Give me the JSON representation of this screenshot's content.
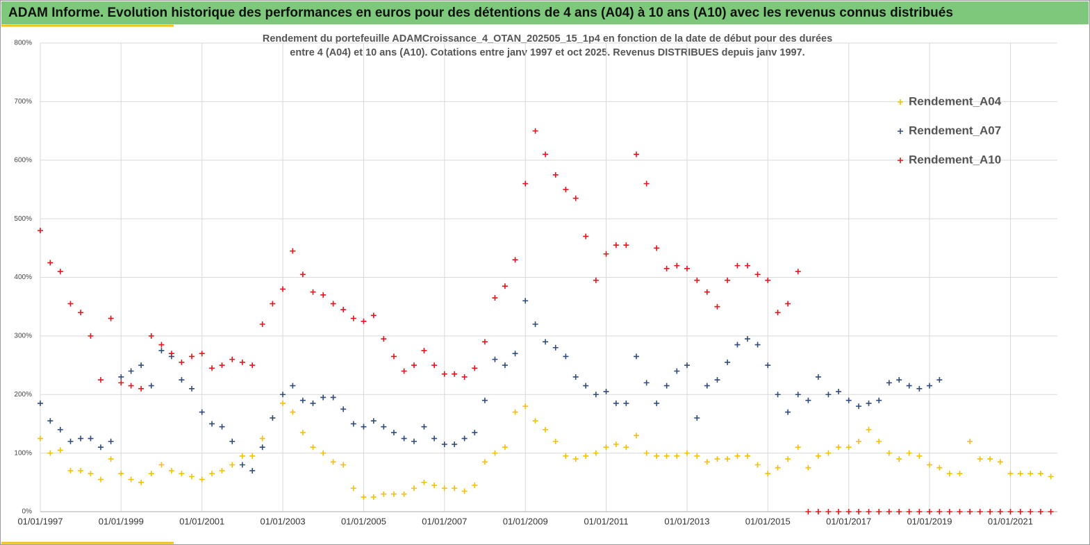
{
  "header": {
    "title": "ADAM Informe. Evolution historique des performances en euros pour des détentions de 4 ans (A04) à 10 ans (A10) avec les revenus connus distribués"
  },
  "chart_data": {
    "type": "scatter",
    "title": [
      "Rendement du portefeuille ADAMCroissance_4_OTAN_202505_15_1p4  en fonction de la date de début pour des durées",
      "entre 4 (A04) et 10 ans (A10). Cotations entre janv 1997 et oct 2025. Revenus DISTRIBUES depuis janv 1997."
    ],
    "x": [
      "1997-01-01",
      "1997-04-01",
      "1997-07-01",
      "1997-10-01",
      "1998-01-01",
      "1998-04-01",
      "1998-07-01",
      "1998-10-01",
      "1999-01-01",
      "1999-04-01",
      "1999-07-01",
      "1999-10-01",
      "2000-01-01",
      "2000-04-01",
      "2000-07-01",
      "2000-10-01",
      "2001-01-01",
      "2001-04-01",
      "2001-07-01",
      "2001-10-01",
      "2002-01-01",
      "2002-04-01",
      "2002-07-01",
      "2002-10-01",
      "2003-01-01",
      "2003-04-01",
      "2003-07-01",
      "2003-10-01",
      "2004-01-01",
      "2004-04-01",
      "2004-07-01",
      "2004-10-01",
      "2005-01-01",
      "2005-04-01",
      "2005-07-01",
      "2005-10-01",
      "2006-01-01",
      "2006-04-01",
      "2006-07-01",
      "2006-10-01",
      "2007-01-01",
      "2007-04-01",
      "2007-07-01",
      "2007-10-01",
      "2008-01-01",
      "2008-04-01",
      "2008-07-01",
      "2008-10-01",
      "2009-01-01",
      "2009-04-01",
      "2009-07-01",
      "2009-10-01",
      "2010-01-01",
      "2010-04-01",
      "2010-07-01",
      "2010-10-01",
      "2011-01-01",
      "2011-04-01",
      "2011-07-01",
      "2011-10-01",
      "2012-01-01",
      "2012-04-01",
      "2012-07-01",
      "2012-10-01",
      "2013-01-01",
      "2013-04-01",
      "2013-07-01",
      "2013-10-01",
      "2014-01-01",
      "2014-04-01",
      "2014-07-01",
      "2014-10-01",
      "2015-01-01",
      "2015-04-01",
      "2015-07-01",
      "2015-10-01",
      "2016-01-01",
      "2016-04-01",
      "2016-07-01",
      "2016-10-01",
      "2017-01-01",
      "2017-04-01",
      "2017-07-01",
      "2017-10-01",
      "2018-01-01",
      "2018-04-01",
      "2018-07-01",
      "2018-10-01",
      "2019-01-01",
      "2019-04-01",
      "2019-07-01",
      "2019-10-01",
      "2020-01-01",
      "2020-04-01",
      "2020-07-01",
      "2020-10-01",
      "2021-01-01",
      "2021-04-01",
      "2021-07-01",
      "2021-10-01",
      "2022-01-01"
    ],
    "series": [
      {
        "name": "Rendement_A04",
        "color": "#f5c000",
        "values": [
          125,
          100,
          105,
          70,
          70,
          65,
          55,
          90,
          65,
          55,
          50,
          65,
          80,
          70,
          65,
          60,
          55,
          65,
          70,
          80,
          95,
          95,
          125,
          160,
          185,
          170,
          135,
          110,
          100,
          85,
          80,
          40,
          25,
          25,
          30,
          30,
          30,
          40,
          50,
          45,
          40,
          40,
          35,
          45,
          85,
          100,
          110,
          170,
          180,
          155,
          140,
          120,
          95,
          90,
          95,
          100,
          110,
          115,
          110,
          130,
          100,
          95,
          95,
          95,
          100,
          95,
          85,
          90,
          90,
          95,
          95,
          80,
          65,
          75,
          90,
          110,
          75,
          95,
          100,
          110,
          110,
          120,
          140,
          120,
          100,
          90,
          100,
          95,
          80,
          75,
          65,
          65,
          120,
          90,
          90,
          85,
          65,
          65,
          65,
          65,
          60
        ]
      },
      {
        "name": "Rendement_A07",
        "color": "#2f4b7c",
        "values": [
          185,
          155,
          140,
          120,
          125,
          125,
          110,
          120,
          230,
          240,
          250,
          215,
          275,
          265,
          225,
          210,
          170,
          150,
          145,
          120,
          80,
          70,
          110,
          160,
          200,
          215,
          190,
          185,
          195,
          195,
          175,
          150,
          145,
          155,
          145,
          135,
          125,
          120,
          145,
          125,
          115,
          115,
          125,
          135,
          190,
          260,
          250,
          270,
          360,
          320,
          290,
          280,
          265,
          230,
          215,
          200,
          205,
          185,
          185,
          265,
          220,
          185,
          215,
          240,
          250,
          160,
          215,
          225,
          255,
          285,
          295,
          285,
          250,
          200,
          170,
          200,
          190,
          230,
          200,
          205,
          190,
          180,
          185,
          190,
          220,
          225,
          215,
          210,
          215,
          225,
          null,
          null,
          null,
          null,
          null,
          null,
          null,
          null,
          null,
          null,
          null
        ]
      },
      {
        "name": "Rendement_A10",
        "color": "#e8121a",
        "values": [
          480,
          425,
          410,
          355,
          340,
          300,
          225,
          330,
          220,
          215,
          210,
          300,
          285,
          270,
          255,
          265,
          270,
          245,
          250,
          260,
          255,
          250,
          320,
          355,
          380,
          445,
          405,
          375,
          370,
          355,
          345,
          330,
          325,
          335,
          295,
          265,
          240,
          250,
          275,
          250,
          235,
          235,
          230,
          245,
          290,
          365,
          385,
          430,
          560,
          650,
          610,
          575,
          550,
          535,
          470,
          395,
          440,
          455,
          455,
          610,
          560,
          450,
          415,
          420,
          415,
          395,
          375,
          350,
          395,
          420,
          420,
          405,
          395,
          340,
          355,
          410,
          0,
          0,
          0,
          0,
          0,
          0,
          0,
          0,
          0,
          0,
          0,
          0,
          0,
          0,
          0,
          0,
          0,
          0,
          0,
          0,
          0,
          0,
          0,
          0,
          0
        ]
      }
    ],
    "xlim": [
      "1997-01-01",
      "2022-03-01"
    ],
    "xticks": [
      {
        "value": "1997-01-01",
        "label": "01/01/1997"
      },
      {
        "value": "1999-01-01",
        "label": "01/01/1999"
      },
      {
        "value": "2001-01-01",
        "label": "01/01/2001"
      },
      {
        "value": "2003-01-01",
        "label": "01/01/2003"
      },
      {
        "value": "2005-01-01",
        "label": "01/01/2005"
      },
      {
        "value": "2007-01-01",
        "label": "01/01/2007"
      },
      {
        "value": "2009-01-01",
        "label": "01/01/2009"
      },
      {
        "value": "2011-01-01",
        "label": "01/01/2011"
      },
      {
        "value": "2013-01-01",
        "label": "01/01/2013"
      },
      {
        "value": "2015-01-01",
        "label": "01/01/2015"
      },
      {
        "value": "2017-01-01",
        "label": "01/01/2017"
      },
      {
        "value": "2019-01-01",
        "label": "01/01/2019"
      },
      {
        "value": "2021-01-01",
        "label": "01/01/2021"
      }
    ],
    "ylim": [
      0,
      800
    ],
    "yticks": [
      {
        "value": 0,
        "label": "0%"
      },
      {
        "value": 100,
        "label": "100%"
      },
      {
        "value": 200,
        "label": "200%"
      },
      {
        "value": 300,
        "label": "300%"
      },
      {
        "value": 400,
        "label": "400%"
      },
      {
        "value": 500,
        "label": "500%"
      },
      {
        "value": 600,
        "label": "600%"
      },
      {
        "value": 700,
        "label": "700%"
      },
      {
        "value": 800,
        "label": "800%"
      }
    ],
    "grid": true,
    "legend": "top-right"
  }
}
